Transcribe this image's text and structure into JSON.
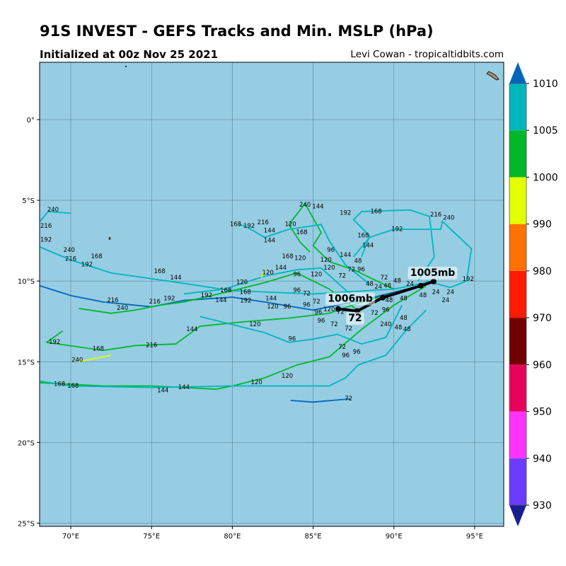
{
  "header": {
    "title": "91S INVEST - GEFS Tracks and Min. MSLP (hPa)",
    "subtitle": "Initialized at 00z Nov 25 2021",
    "credit": "Levi Cowan - tropicaltidbits.com"
  },
  "map": {
    "ocean_color": "#96cde3",
    "lon_range": [
      68.07,
      96.8
    ],
    "lat_range": [
      -25.2,
      3.55
    ],
    "lon_ticks": [
      {
        "v": 70,
        "label": "70°E"
      },
      {
        "v": 75,
        "label": "75°E"
      },
      {
        "v": 80,
        "label": "80°E"
      },
      {
        "v": 85,
        "label": "85°E"
      },
      {
        "v": 90,
        "label": "90°E"
      },
      {
        "v": 95,
        "label": "95°E"
      }
    ],
    "lat_ticks": [
      {
        "v": 0,
        "label": "0°"
      },
      {
        "v": -5,
        "label": "5°S"
      },
      {
        "v": -10,
        "label": "10°S"
      },
      {
        "v": -15,
        "label": "15°S"
      },
      {
        "v": -20,
        "label": "20°S"
      },
      {
        "v": -25,
        "label": "25°S"
      }
    ]
  },
  "colorbar": {
    "levels": [
      930,
      940,
      950,
      960,
      970,
      980,
      990,
      1000,
      1005,
      1010
    ],
    "colors": [
      "#1a1f8f",
      "#6a3cff",
      "#ff33ff",
      "#e8005a",
      "#730000",
      "#ff1a00",
      "#ff7200",
      "#e2ff00",
      "#00b82a",
      "#00b6bd",
      "#0066bb"
    ],
    "labels": [
      "930",
      "940",
      "950",
      "960",
      "970",
      "980",
      "990",
      "1000",
      "1005",
      "1010"
    ]
  },
  "tracks": [
    {
      "color": "#00b6bd",
      "pts": [
        [
          92.5,
          -10
        ],
        [
          90,
          -10.5
        ],
        [
          85,
          -10.8
        ],
        [
          80,
          -10.6
        ],
        [
          76,
          -10
        ],
        [
          72.5,
          -9.5
        ],
        [
          70,
          -8.7
        ],
        [
          68.1,
          -7.9
        ]
      ]
    },
    {
      "color": "#0066bb",
      "pts": [
        [
          92,
          -10.2
        ],
        [
          88,
          -11.2
        ],
        [
          85,
          -11.8
        ],
        [
          82,
          -11.3
        ],
        [
          80,
          -11
        ],
        [
          77,
          -11.2
        ],
        [
          75,
          -11.6
        ],
        [
          72,
          -11.3
        ],
        [
          70,
          -10.9
        ],
        [
          68.1,
          -10.3
        ]
      ]
    },
    {
      "color": "#00b82a",
      "pts": [
        [
          92,
          -10.3
        ],
        [
          90,
          -11.5
        ],
        [
          88,
          -13
        ],
        [
          86,
          -14.7
        ],
        [
          84,
          -15.2
        ],
        [
          82,
          -16
        ],
        [
          80,
          -16.5
        ],
        [
          79,
          -16.7
        ],
        [
          77,
          -16.6
        ],
        [
          75,
          -16.5
        ],
        [
          72,
          -16.5
        ],
        [
          70,
          -16.4
        ],
        [
          68.1,
          -16.3
        ]
      ]
    },
    {
      "color": "#00b82a",
      "pts": [
        [
          91,
          -10.5
        ],
        [
          88,
          -11.3
        ],
        [
          86,
          -12
        ],
        [
          83.5,
          -12.3
        ],
        [
          81,
          -12.5
        ],
        [
          78,
          -12.8
        ],
        [
          76.5,
          -13.9
        ],
        [
          74,
          -14
        ],
        [
          72,
          -14.3
        ],
        [
          68.5,
          -13.8
        ],
        [
          69.5,
          -13.1
        ]
      ]
    },
    {
      "color": "#00b6bd",
      "pts": [
        [
          91.5,
          -10
        ],
        [
          92.5,
          -8.5
        ],
        [
          92.2,
          -6
        ],
        [
          91,
          -5.6
        ],
        [
          88,
          -5.7
        ],
        [
          87.5,
          -6.2
        ],
        [
          88.5,
          -7.2
        ],
        [
          88,
          -8.5
        ]
      ]
    },
    {
      "color": "#00b6bd",
      "pts": [
        [
          92,
          -10
        ],
        [
          93.5,
          -10.4
        ],
        [
          94.5,
          -10
        ],
        [
          94.8,
          -8
        ],
        [
          93,
          -6.3
        ],
        [
          92.9,
          -6.8
        ],
        [
          90,
          -6.8
        ],
        [
          88.5,
          -7.3
        ],
        [
          87.5,
          -8.5
        ]
      ]
    },
    {
      "color": "#00b82a",
      "pts": [
        [
          90,
          -10.5
        ],
        [
          87.5,
          -9.3
        ],
        [
          86,
          -8.8
        ],
        [
          85,
          -7.8
        ],
        [
          85.5,
          -7
        ],
        [
          84.5,
          -5.2
        ],
        [
          83.5,
          -6.5
        ],
        [
          84.2,
          -7.6
        ],
        [
          84.8,
          -8.2
        ]
      ]
    },
    {
      "color": "#00b6bd",
      "pts": [
        [
          88.5,
          -10.2
        ],
        [
          87,
          -9
        ],
        [
          86,
          -7.5
        ],
        [
          85.5,
          -6.5
        ],
        [
          83.5,
          -6.8
        ],
        [
          82,
          -7.3
        ],
        [
          80.8,
          -6.6
        ],
        [
          80.4,
          -6.5
        ]
      ]
    },
    {
      "color": "#00b6bd",
      "pts": [
        [
          90.5,
          -11.5
        ],
        [
          89.5,
          -13.5
        ],
        [
          88,
          -13.9
        ],
        [
          86.5,
          -13.3
        ],
        [
          85,
          -13.6
        ],
        [
          83.5,
          -13.8
        ],
        [
          82,
          -13.2
        ],
        [
          80,
          -12.7
        ],
        [
          78,
          -12.2
        ]
      ]
    },
    {
      "color": "#0066bb",
      "pts": [
        [
          83.6,
          -17.4
        ],
        [
          85,
          -17.5
        ],
        [
          87.3,
          -17.3
        ]
      ]
    },
    {
      "color": "#00b6bd",
      "pts": [
        [
          92,
          -11.8
        ],
        [
          90.8,
          -13
        ],
        [
          89.5,
          -14.6
        ],
        [
          87.8,
          -15.2
        ],
        [
          87,
          -16
        ],
        [
          86,
          -16.5
        ],
        [
          80,
          -16.5
        ],
        [
          75,
          -16.6
        ],
        [
          70,
          -16.5
        ],
        [
          68.1,
          -16.2
        ]
      ]
    },
    {
      "color": "#00b82a",
      "pts": [
        [
          88,
          -12
        ],
        [
          86,
          -10.5
        ],
        [
          84,
          -9.5
        ],
        [
          82,
          -10.1
        ],
        [
          80,
          -10.6
        ],
        [
          77,
          -11.3
        ],
        [
          75.5,
          -11.5
        ],
        [
          74,
          -11.8
        ],
        [
          72.5,
          -12
        ],
        [
          70.5,
          -11.7
        ]
      ]
    },
    {
      "color": "#00b6bd",
      "pts": [
        [
          87.5,
          -11
        ],
        [
          85.5,
          -9.2
        ],
        [
          84,
          -9.3
        ],
        [
          82,
          -9.7
        ],
        [
          79.5,
          -10.5
        ],
        [
          77,
          -10.8
        ]
      ]
    },
    {
      "color": "#00b6bd",
      "pts": [
        [
          68.1,
          -6.3
        ],
        [
          68.6,
          -5.7
        ],
        [
          70,
          -5.8
        ]
      ]
    },
    {
      "color": "#e2ff00",
      "pts": [
        [
          72.5,
          -14.6
        ],
        [
          70.5,
          -15
        ]
      ]
    },
    {
      "color": "#e2ff00",
      "pts": [
        [
          81.8,
          -9.8
        ],
        [
          82,
          -9.3
        ]
      ]
    }
  ],
  "mean_track": {
    "pts": [
      [
        92.46,
        -10.03
      ],
      [
        91.67,
        -10.29
      ],
      [
        89.31,
        -11.03
      ],
      [
        87.73,
        -11.86
      ],
      [
        86.55,
        -11.73
      ]
    ],
    "labels": [
      {
        "text": "1005mb",
        "lon": 92.4,
        "lat": -9.6
      },
      {
        "text": "1006mb",
        "lon": 87.3,
        "lat": -11.2
      },
      {
        "text": "72",
        "lon": 87.6,
        "lat": -12.4
      }
    ]
  },
  "hour_labels": [
    {
      "t": "240",
      "lon": 68.9,
      "lat": -5.7
    },
    {
      "t": "216",
      "lon": 67.9,
      "lat": -6.7
    },
    {
      "t": "192",
      "lon": 67.9,
      "lat": -7.55
    },
    {
      "t": "240",
      "lon": 69.9,
      "lat": -8.2
    },
    {
      "t": "216",
      "lon": 70,
      "lat": -8.3
    },
    {
      "t": "168",
      "lon": 71.6,
      "lat": -8.6
    },
    {
      "t": "192",
      "lon": 71,
      "lat": -9.1
    },
    {
      "t": "168",
      "lon": 75.5,
      "lat": -9.5
    },
    {
      "t": "144",
      "lon": 76.5,
      "lat": -9.9
    },
    {
      "t": "216",
      "lon": 72.6,
      "lat": -11.3
    },
    {
      "t": "240",
      "lon": 73.2,
      "lat": -11.8
    },
    {
      "t": "216",
      "lon": 75.2,
      "lat": -11.4
    },
    {
      "t": "192",
      "lon": 76.1,
      "lat": -11.2
    },
    {
      "t": "192",
      "lon": 78.4,
      "lat": -11
    },
    {
      "t": "144",
      "lon": 79.3,
      "lat": -11.3
    },
    {
      "t": "168",
      "lon": 79.6,
      "lat": -10.7
    },
    {
      "t": "120",
      "lon": 80.6,
      "lat": -10.2
    },
    {
      "t": "168",
      "lon": 80.8,
      "lat": -10.8
    },
    {
      "t": "192",
      "lon": 80.7,
      "lat": -11.2
    },
    {
      "t": "120",
      "lon": 82.2,
      "lat": -9.6
    },
    {
      "t": "144",
      "lon": 83,
      "lat": -9.3
    },
    {
      "t": "96",
      "lon": 84,
      "lat": -9.7
    },
    {
      "t": "144",
      "lon": 82.4,
      "lat": -11.2
    },
    {
      "t": "120",
      "lon": 82.5,
      "lat": -11.7
    },
    {
      "t": "96",
      "lon": 83.4,
      "lat": -11.7
    },
    {
      "t": "96",
      "lon": 84,
      "lat": -10.7
    },
    {
      "t": "72",
      "lon": 84.6,
      "lat": -10.9
    },
    {
      "t": "96",
      "lon": 84.6,
      "lat": -11.6
    },
    {
      "t": "72",
      "lon": 84.9,
      "lat": -11.4
    },
    {
      "t": "120",
      "lon": 85.6,
      "lat": -11.3
    },
    {
      "t": "96",
      "lon": 85.8,
      "lat": -11.7
    },
    {
      "t": "96",
      "lon": 85.5,
      "lat": -12.4
    },
    {
      "t": "72",
      "lon": 86.3,
      "lat": -12.8
    },
    {
      "t": "120",
      "lon": 81.4,
      "lat": -12.8
    },
    {
      "t": "96",
      "lon": 83.7,
      "lat": -13.7
    },
    {
      "t": "72",
      "lon": 86.8,
      "lat": -12.5
    },
    {
      "t": "72",
      "lon": 86.8,
      "lat": -14.2
    },
    {
      "t": "96",
      "lon": 86.8,
      "lat": -14.5
    },
    {
      "t": "96",
      "lon": 87.7,
      "lat": -14.5
    },
    {
      "t": "240",
      "lon": 89.5,
      "lat": -12.8
    },
    {
      "t": "48",
      "lon": 90.1,
      "lat": -13
    },
    {
      "t": "48",
      "lon": 90.5,
      "lat": -13.1
    },
    {
      "t": "48",
      "lon": 90.6,
      "lat": -12.4
    },
    {
      "t": "48",
      "lon": 90.6,
      "lat": -11.2
    },
    {
      "t": "48",
      "lon": 91.8,
      "lat": -11
    },
    {
      "t": "72",
      "lon": 87.4,
      "lat": -12.2
    },
    {
      "t": "72",
      "lon": 88.8,
      "lat": -12.1
    },
    {
      "t": "96",
      "lon": 89.5,
      "lat": -11.9
    },
    {
      "t": "48",
      "lon": 89.7,
      "lat": -11.3
    },
    {
      "t": "48",
      "lon": 89.6,
      "lat": -10.4
    },
    {
      "t": "48",
      "lon": 88.5,
      "lat": -10.3
    },
    {
      "t": "24",
      "lon": 88.9,
      "lat": -10.6
    },
    {
      "t": "72",
      "lon": 89.4,
      "lat": -9.9
    },
    {
      "t": "48",
      "lon": 89.9,
      "lat": -10.1
    },
    {
      "t": "24",
      "lon": 91,
      "lat": -10
    },
    {
      "t": "24",
      "lon": 92.6,
      "lat": -10.8
    },
    {
      "t": "24",
      "lon": 93.5,
      "lat": -10.8
    },
    {
      "t": "24",
      "lon": 93.2,
      "lat": -11.3
    },
    {
      "t": "192",
      "lon": 94.6,
      "lat": -10
    },
    {
      "t": "120",
      "lon": 84.2,
      "lat": -8.7
    },
    {
      "t": "120",
      "lon": 85.8,
      "lat": -8.8
    },
    {
      "t": "120",
      "lon": 86,
      "lat": -9.3
    },
    {
      "t": "120",
      "lon": 85.2,
      "lat": -9.7
    },
    {
      "t": "72",
      "lon": 86.8,
      "lat": -9.8
    },
    {
      "t": "72",
      "lon": 87.2,
      "lat": -9.4
    },
    {
      "t": "96",
      "lon": 87.4,
      "lat": -9.4
    },
    {
      "t": "48",
      "lon": 88,
      "lat": -9.1
    },
    {
      "t": "144",
      "lon": 87,
      "lat": -8.5
    },
    {
      "t": "96",
      "lon": 86.1,
      "lat": -8.2
    },
    {
      "t": "168",
      "lon": 83.6,
      "lat": -8.6
    },
    {
      "t": "144",
      "lon": 88.4,
      "lat": -7.9
    },
    {
      "t": "168",
      "lon": 88.1,
      "lat": -7.3
    },
    {
      "t": "192",
      "lon": 90.2,
      "lat": -6.9
    },
    {
      "t": "168",
      "lon": 88.9,
      "lat": -5.8
    },
    {
      "t": "192",
      "lon": 87,
      "lat": -5.9
    },
    {
      "t": "216",
      "lon": 92.6,
      "lat": -6
    },
    {
      "t": "240",
      "lon": 93.4,
      "lat": -6.2
    },
    {
      "t": "240",
      "lon": 84.5,
      "lat": -5.4
    },
    {
      "t": "144",
      "lon": 85.3,
      "lat": -5.5
    },
    {
      "t": "120",
      "lon": 83.6,
      "lat": -6.6
    },
    {
      "t": "168",
      "lon": 84.3,
      "lat": -7.1
    },
    {
      "t": "144",
      "lon": 82.3,
      "lat": -7.0
    },
    {
      "t": "144",
      "lon": 82.3,
      "lat": -7.6
    },
    {
      "t": "216",
      "lon": 81.9,
      "lat": -6.8
    },
    {
      "t": "168",
      "lon": 80.2,
      "lat": -6.6
    },
    {
      "t": "192",
      "lon": 80.6,
      "lat": -6.7
    },
    {
      "t": "144",
      "lon": 77.5,
      "lat": -13.1
    },
    {
      "t": "192",
      "lon": 69,
      "lat": -13.9
    },
    {
      "t": "168",
      "lon": 71.7,
      "lat": -14.3
    },
    {
      "t": "216",
      "lon": 75,
      "lat": -14.1
    },
    {
      "t": "240",
      "lon": 70.4,
      "lat": -15
    },
    {
      "t": "168",
      "lon": 69.3,
      "lat": -16.5
    },
    {
      "t": "168",
      "lon": 69.7,
      "lat": -16.6
    },
    {
      "t": "144",
      "lon": 75.7,
      "lat": -16.9
    },
    {
      "t": "144",
      "lon": 77,
      "lat": -16.7
    },
    {
      "t": "120",
      "lon": 81.5,
      "lat": -16.4
    },
    {
      "t": "120",
      "lon": 83.4,
      "lat": -16
    },
    {
      "t": "72",
      "lon": 87.2,
      "lat": -17.4
    }
  ]
}
